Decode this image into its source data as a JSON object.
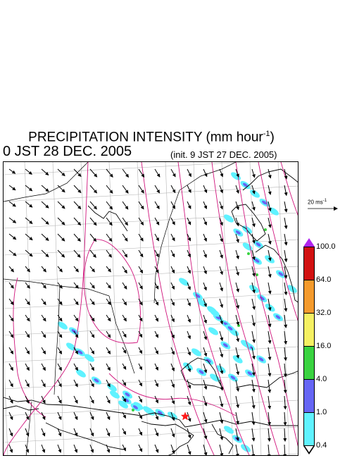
{
  "title": {
    "main": "PRECIPITATION INTENSITY (mm hour",
    "sup": "-1",
    "close": ")"
  },
  "valid_time": "0 JST 28 DEC. 2005",
  "init_time": "(init. 9 JST 27 DEC. 2005)",
  "wind_reference": {
    "label": "20 ms",
    "sup": "-1"
  },
  "colorbar": {
    "labels": [
      "100.0",
      "64.0",
      "32.0",
      "16.0",
      "4.0",
      "1.0",
      "0.4"
    ],
    "colors": [
      "#d11010",
      "#f49a2c",
      "#f5f062",
      "#39d23f",
      "#6565f4",
      "#5ff2ff"
    ],
    "top_triangle": "#b025ef",
    "bottom_triangle": "#ffffff"
  },
  "map": {
    "marker": "red star",
    "colors": {
      "wind_arrow": "#000000",
      "contour": "#d0147c",
      "coastline": "#000000",
      "grid": "#b5b5b5",
      "precip_light": "#5ff2ff",
      "precip_moderate": "#6565f4",
      "precip_heavy": "#39d23f",
      "marker": "#ff1a1a"
    }
  }
}
